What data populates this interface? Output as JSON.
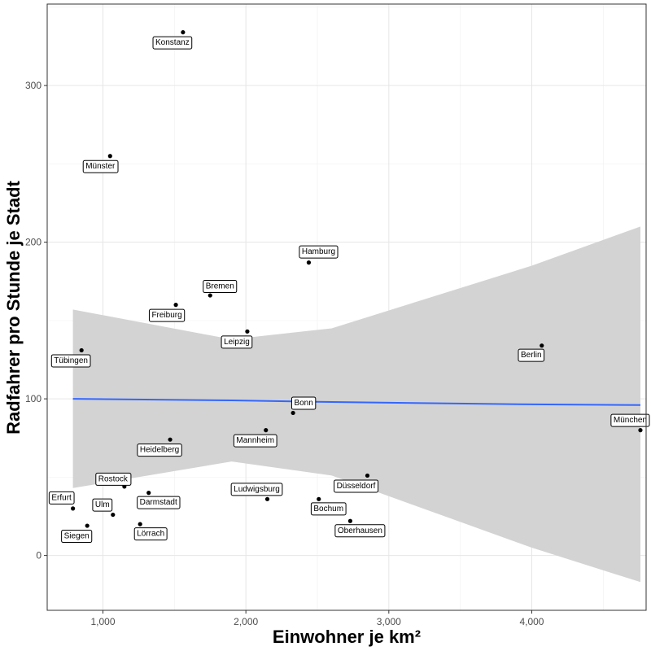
{
  "chart_data": {
    "type": "scatter",
    "xlabel": "Einwohner je km²",
    "ylabel": "Radfahrer pro Stunde je Stadt",
    "xlim": [
      610,
      4800
    ],
    "ylim": [
      -35,
      352
    ],
    "x_ticks": [
      1000,
      2000,
      3000,
      4000
    ],
    "x_tick_labels": [
      "1,000",
      "2,000",
      "3,000",
      "4,000"
    ],
    "y_ticks": [
      0,
      100,
      200,
      300
    ],
    "y_tick_labels": [
      "0",
      "100",
      "200",
      "300"
    ],
    "grid": true,
    "legend": "none",
    "point_color": "#000000",
    "points": [
      {
        "name": "Konstanz",
        "x": 1560,
        "y": 334
      },
      {
        "name": "Münster",
        "x": 1050,
        "y": 255
      },
      {
        "name": "Hamburg",
        "x": 2440,
        "y": 187
      },
      {
        "name": "Bremen",
        "x": 1750,
        "y": 166
      },
      {
        "name": "Freiburg",
        "x": 1510,
        "y": 160
      },
      {
        "name": "Leipzig",
        "x": 2010,
        "y": 143
      },
      {
        "name": "Tübingen",
        "x": 850,
        "y": 131
      },
      {
        "name": "Berlin",
        "x": 4070,
        "y": 134
      },
      {
        "name": "Bonn",
        "x": 2330,
        "y": 91
      },
      {
        "name": "München",
        "x": 4760,
        "y": 80
      },
      {
        "name": "Mannheim",
        "x": 2140,
        "y": 80
      },
      {
        "name": "Heidelberg",
        "x": 1470,
        "y": 74
      },
      {
        "name": "Düsseldorf",
        "x": 2850,
        "y": 51
      },
      {
        "name": "Rostock",
        "x": 1150,
        "y": 44
      },
      {
        "name": "Darmstadt",
        "x": 1320,
        "y": 40
      },
      {
        "name": "Ludwigsburg",
        "x": 2150,
        "y": 36
      },
      {
        "name": "Bochum",
        "x": 2510,
        "y": 36
      },
      {
        "name": "Erfurt",
        "x": 790,
        "y": 30
      },
      {
        "name": "Ulm",
        "x": 1070,
        "y": 26
      },
      {
        "name": "Oberhausen",
        "x": 2730,
        "y": 22
      },
      {
        "name": "Lörrach",
        "x": 1260,
        "y": 20
      },
      {
        "name": "Siegen",
        "x": 890,
        "y": 19
      }
    ],
    "trend": {
      "color": "#3366ff",
      "band_color": "#d3d3d3",
      "x": [
        790,
        1900,
        2600,
        3300,
        4000,
        4760
      ],
      "y": [
        100,
        99,
        98,
        97.2,
        96.5,
        96
      ],
      "lower": [
        43,
        60,
        51,
        28,
        5,
        -17
      ],
      "upper": [
        157,
        138,
        145,
        165,
        185,
        210
      ]
    }
  }
}
